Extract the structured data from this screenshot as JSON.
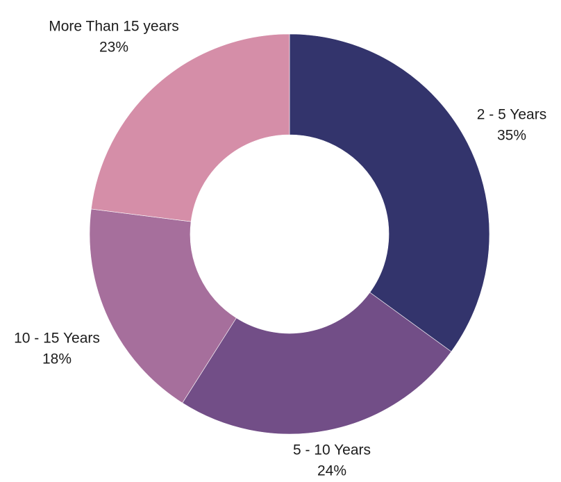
{
  "chart_data": {
    "type": "pie",
    "variant": "donut",
    "title": "",
    "slices": [
      {
        "label": "2 - 5 Years",
        "value": 35,
        "value_label": "35%",
        "color": "#33346c"
      },
      {
        "label": "5 - 10 Years",
        "value": 24,
        "value_label": "24%",
        "color": "#724e87"
      },
      {
        "label": "10 - 15 Years",
        "value": 18,
        "value_label": "18%",
        "color": "#a66f9c"
      },
      {
        "label": "More Than 15 years",
        "value": 23,
        "value_label": "23%",
        "color": "#d58ea8"
      }
    ],
    "start_angle": "12 o'clock",
    "direction": "clockwise",
    "legend": "none",
    "labels": "outside each slice, category above percentage"
  }
}
